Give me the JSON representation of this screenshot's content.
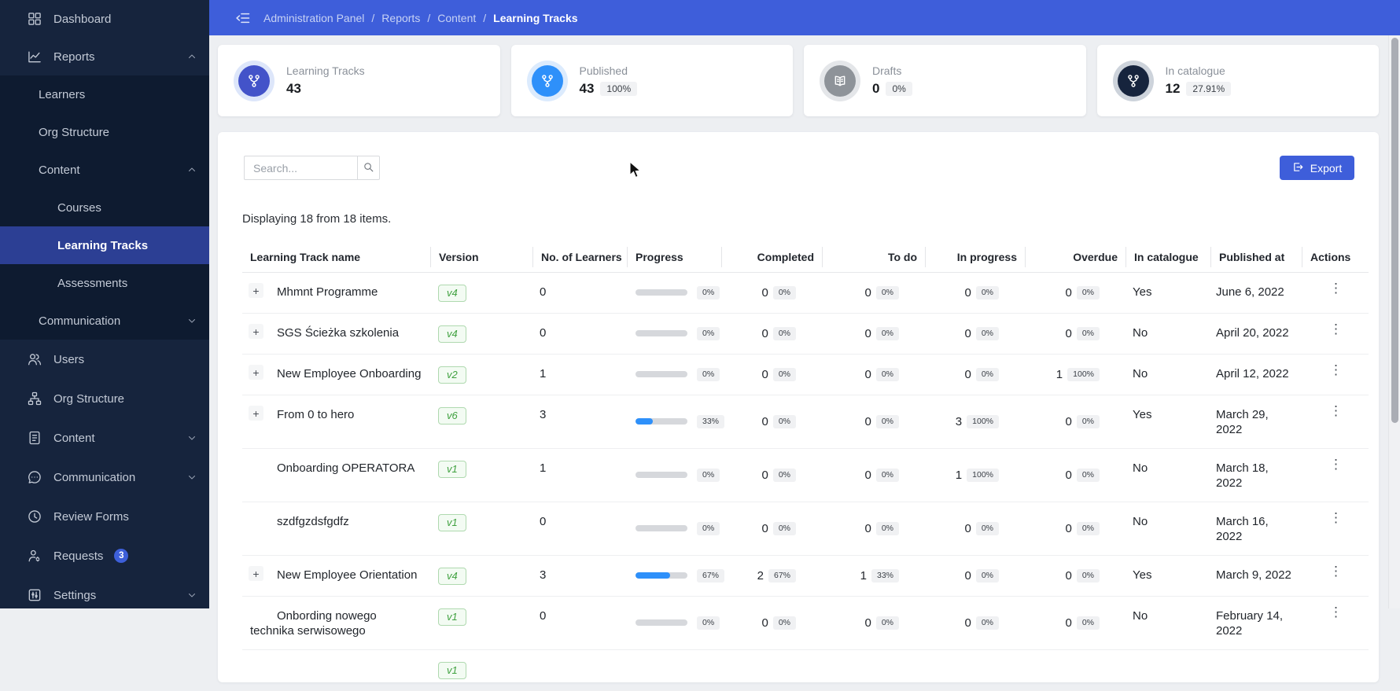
{
  "colors": {
    "accent_blue": "#3E5EDA",
    "sidebar_bg": "#16243D",
    "submenu_bg": "#0E1B30",
    "active_item_bg": "#2C3F94",
    "progress_fill": "#2E90FA",
    "version_green": "#3FA13F"
  },
  "sidebar": {
    "sections": [
      {
        "type": "item",
        "label": "Dashboard",
        "icon": "dashboard-grid-icon"
      },
      {
        "type": "item",
        "label": "Reports",
        "icon": "reports-chart-icon",
        "chevron": "up"
      },
      {
        "type": "group",
        "ns": "reports",
        "items": [
          {
            "label": "Learners",
            "level": 1
          },
          {
            "label": "Org Structure",
            "level": 1
          },
          {
            "label": "Content",
            "level": 1,
            "chevron": "up"
          },
          {
            "label": "Courses",
            "level": 2
          },
          {
            "label": "Learning Tracks",
            "level": 2,
            "active": true
          },
          {
            "label": "Assessments",
            "level": 2
          },
          {
            "label": "Communication",
            "level": 1,
            "chevron": "down"
          }
        ]
      },
      {
        "type": "item",
        "label": "Users",
        "icon": "users-icon",
        "tall": true
      },
      {
        "type": "item",
        "label": "Org Structure",
        "icon": "org-structure-icon",
        "tall": true
      },
      {
        "type": "item",
        "label": "Content",
        "icon": "content-icon",
        "chevron": "down",
        "tall": true
      },
      {
        "type": "item",
        "label": "Communication",
        "icon": "communication-icon",
        "chevron": "down",
        "tall": true
      },
      {
        "type": "item",
        "label": "Review Forms",
        "icon": "review-forms-icon",
        "tall": true
      },
      {
        "type": "item",
        "label": "Requests",
        "icon": "requests-icon",
        "badge": "3",
        "tall": true
      },
      {
        "type": "item",
        "label": "Settings",
        "icon": "settings-icon",
        "chevron": "down",
        "tall": true
      }
    ]
  },
  "breadcrumb": {
    "links": [
      "Administration Panel",
      "Reports",
      "Content"
    ],
    "current": "Learning Tracks",
    "separator": "/"
  },
  "cards": [
    {
      "label": "Learning Tracks",
      "value": "43",
      "badge": "",
      "icon": "branch-icon",
      "icon_bg": "#4353C9",
      "ring": "#DDE6FA"
    },
    {
      "label": "Published",
      "value": "43",
      "badge": "100%",
      "icon": "branch-icon",
      "icon_bg": "#2E90FA",
      "ring": "#DCEBFD"
    },
    {
      "label": "Drafts",
      "value": "0",
      "badge": "0%",
      "icon": "book-icon",
      "icon_bg": "#8E9399",
      "ring": "#E4E6E9"
    },
    {
      "label": "In catalogue",
      "value": "12",
      "badge": "27.91%",
      "icon": "branch-icon",
      "icon_bg": "#16243D",
      "ring": "#CDD3DB"
    }
  ],
  "toolbar": {
    "search_placeholder": "Search...",
    "export_label": "Export"
  },
  "table": {
    "summary": "Displaying 18 from 18 items.",
    "columns": [
      "Learning Track name",
      "Version",
      "No. of Learners",
      "Progress",
      "Completed",
      "To do",
      "In progress",
      "Overdue",
      "In catalogue",
      "Published at",
      "Actions"
    ],
    "rows": [
      {
        "expandable": true,
        "name": "Mhmnt Programme",
        "version": "v4",
        "learners": "0",
        "progress_pct": 0,
        "progress_label": "0%",
        "completed": {
          "n": "0",
          "pct": "0%"
        },
        "todo": {
          "n": "0",
          "pct": "0%"
        },
        "in_progress": {
          "n": "0",
          "pct": "0%"
        },
        "overdue": {
          "n": "0",
          "pct": "0%"
        },
        "in_catalogue": "Yes",
        "published_at": "June 6, 2022"
      },
      {
        "expandable": true,
        "name": "SGS Ścieżka szkolenia",
        "version": "v4",
        "learners": "0",
        "progress_pct": 0,
        "progress_label": "0%",
        "completed": {
          "n": "0",
          "pct": "0%"
        },
        "todo": {
          "n": "0",
          "pct": "0%"
        },
        "in_progress": {
          "n": "0",
          "pct": "0%"
        },
        "overdue": {
          "n": "0",
          "pct": "0%"
        },
        "in_catalogue": "No",
        "published_at": "April 20, 2022"
      },
      {
        "expandable": true,
        "name": "New Employee Onboarding",
        "version": "v2",
        "learners": "1",
        "progress_pct": 0,
        "progress_label": "0%",
        "completed": {
          "n": "0",
          "pct": "0%"
        },
        "todo": {
          "n": "0",
          "pct": "0%"
        },
        "in_progress": {
          "n": "0",
          "pct": "0%"
        },
        "overdue": {
          "n": "1",
          "pct": "100%"
        },
        "in_catalogue": "No",
        "published_at": "April 12, 2022"
      },
      {
        "expandable": true,
        "name": "From 0 to hero",
        "version": "v6",
        "learners": "3",
        "progress_pct": 33,
        "progress_label": "33%",
        "completed": {
          "n": "0",
          "pct": "0%"
        },
        "todo": {
          "n": "0",
          "pct": "0%"
        },
        "in_progress": {
          "n": "3",
          "pct": "100%"
        },
        "overdue": {
          "n": "0",
          "pct": "0%"
        },
        "in_catalogue": "Yes",
        "published_at": "March 29, 2022"
      },
      {
        "expandable": false,
        "name": "Onboarding OPERATORA",
        "version": "v1",
        "learners": "1",
        "progress_pct": 0,
        "progress_label": "0%",
        "completed": {
          "n": "0",
          "pct": "0%"
        },
        "todo": {
          "n": "0",
          "pct": "0%"
        },
        "in_progress": {
          "n": "1",
          "pct": "100%"
        },
        "overdue": {
          "n": "0",
          "pct": "0%"
        },
        "in_catalogue": "No",
        "published_at": "March 18, 2022"
      },
      {
        "expandable": false,
        "name": "szdfgzdsfgdfz",
        "version": "v1",
        "learners": "0",
        "progress_pct": 0,
        "progress_label": "0%",
        "completed": {
          "n": "0",
          "pct": "0%"
        },
        "todo": {
          "n": "0",
          "pct": "0%"
        },
        "in_progress": {
          "n": "0",
          "pct": "0%"
        },
        "overdue": {
          "n": "0",
          "pct": "0%"
        },
        "in_catalogue": "No",
        "published_at": "March 16, 2022"
      },
      {
        "expandable": true,
        "name": "New Employee Orientation",
        "version": "v4",
        "learners": "3",
        "progress_pct": 67,
        "progress_label": "67%",
        "completed": {
          "n": "2",
          "pct": "67%"
        },
        "todo": {
          "n": "1",
          "pct": "33%"
        },
        "in_progress": {
          "n": "0",
          "pct": "0%"
        },
        "overdue": {
          "n": "0",
          "pct": "0%"
        },
        "in_catalogue": "Yes",
        "published_at": "March 9, 2022"
      },
      {
        "expandable": false,
        "name": "Onbording nowego technika serwisowego",
        "version": "v1",
        "learners": "0",
        "progress_pct": 0,
        "progress_label": "0%",
        "completed": {
          "n": "0",
          "pct": "0%"
        },
        "todo": {
          "n": "0",
          "pct": "0%"
        },
        "in_progress": {
          "n": "0",
          "pct": "0%"
        },
        "overdue": {
          "n": "0",
          "pct": "0%"
        },
        "in_catalogue": "No",
        "published_at": "February 14, 2022"
      },
      {
        "expandable": false,
        "partial": true,
        "name": "",
        "version": "v1",
        "learners": "",
        "progress_pct": 0,
        "progress_label": "",
        "completed": {
          "n": "",
          "pct": ""
        },
        "todo": {
          "n": "",
          "pct": ""
        },
        "in_progress": {
          "n": "",
          "pct": ""
        },
        "overdue": {
          "n": "",
          "pct": ""
        },
        "in_catalogue": "",
        "published_at": ""
      }
    ]
  }
}
